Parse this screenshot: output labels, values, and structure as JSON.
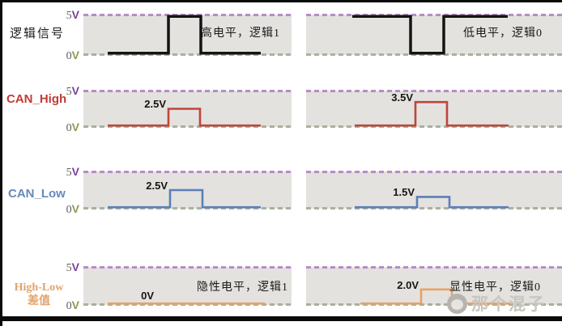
{
  "axis": {
    "high_digit": "5",
    "high_unit": "V",
    "low_digit": "0",
    "low_unit": "V",
    "high_line_color": "#b78cc7",
    "low_line_color": "#a9b29d",
    "high_label_color": "#7c3f9e",
    "low_label_color": "#8a9b50"
  },
  "colors": {
    "panel_background": "#e3e2df",
    "logic_signal": "#141414",
    "can_high": "#c0443a",
    "can_low": "#5b7fb8",
    "high_low_diff": "#e8a265",
    "frame_border": "#0a0a0a",
    "watermark": "#c9c6bf"
  },
  "rows": [
    {
      "label": "逻辑信号",
      "label_color": "#1a1a1a",
      "left": {
        "value_label": "",
        "annotation": "高电平，逻辑1",
        "waveform": {
          "color": "#141414",
          "stroke": 3.5,
          "x": [
            30,
            105,
            145,
            219
          ],
          "base_v": 0,
          "pulse_v": 5
        }
      },
      "right": {
        "value_label": "",
        "annotation": "低电平，逻辑0",
        "waveform": {
          "color": "#141414",
          "stroke": 3.5,
          "x": [
            57,
            129,
            170,
            249
          ],
          "base_v": 5,
          "pulse_v": 0
        }
      }
    },
    {
      "label": "CAN_High",
      "label_color": "#c13b33",
      "left": {
        "value_label": "2.5V",
        "annotation": "",
        "waveform": {
          "color": "#c0443a",
          "stroke": 2.6,
          "x": [
            30,
            105,
            144,
            219
          ],
          "base_v": 0,
          "pulse_v": 2.5
        }
      },
      "right": {
        "value_label": "3.5V",
        "annotation": "",
        "waveform": {
          "color": "#c0443a",
          "stroke": 2.6,
          "x": [
            60,
            135,
            174,
            250
          ],
          "base_v": 0,
          "pulse_v": 3.5
        }
      }
    },
    {
      "label": "CAN_Low",
      "label_color": "#6688bb",
      "left": {
        "value_label": "2.5V",
        "annotation": "",
        "waveform": {
          "color": "#5b7fb8",
          "stroke": 2.6,
          "x": [
            30,
            107,
            147,
            219
          ],
          "base_v": 0,
          "pulse_v": 2.5
        }
      },
      "right": {
        "value_label": "1.5V",
        "annotation": "",
        "waveform": {
          "color": "#5b7fb8",
          "stroke": 2.6,
          "x": [
            60,
            137,
            177,
            250
          ],
          "base_v": 0,
          "pulse_v": 1.5
        }
      }
    },
    {
      "label_line1": "High-Low",
      "label_line2": "差值",
      "label_color": "#e2a36b",
      "left": {
        "value_label": "0V",
        "annotation": "隐性电平，逻辑1",
        "waveform": {
          "color": "#e8a265",
          "stroke": 2.6,
          "x": [
            30,
            90,
            90,
            224
          ],
          "base_v": 0,
          "pulse_v": 0
        }
      },
      "right": {
        "value_label": "2.0V",
        "annotation": "显性电平，逻辑0",
        "waveform": {
          "color": "#e8a265",
          "stroke": 2.6,
          "x": [
            67,
            142,
            180,
            252
          ],
          "base_v": 0,
          "pulse_v": 2
        }
      }
    }
  ],
  "watermark": {
    "text": "那个混子",
    "icon": "panda-logo"
  }
}
